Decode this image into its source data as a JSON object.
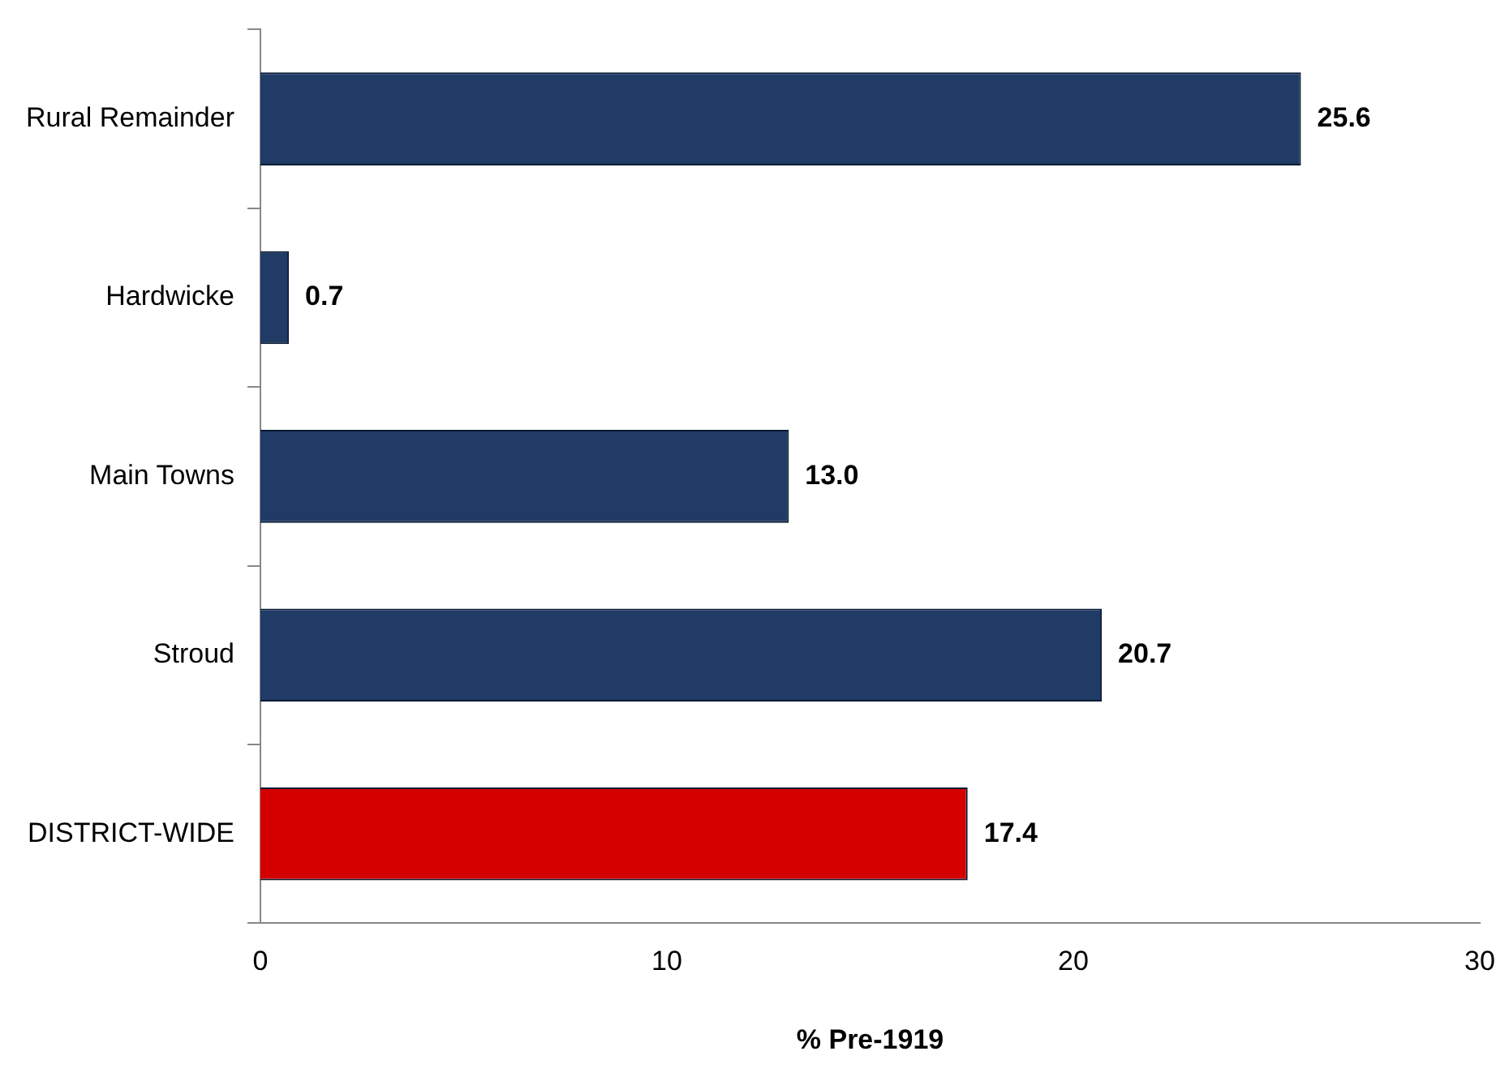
{
  "chart_data": {
    "type": "bar",
    "orientation": "horizontal",
    "xlabel": "% Pre-1919",
    "categories": [
      "Rural Remainder",
      "Hardwicke",
      "Main Towns",
      "Stroud",
      "DISTRICT-WIDE"
    ],
    "values": [
      25.6,
      0.7,
      13.0,
      20.7,
      17.4
    ],
    "colors": [
      "#1f3b66",
      "#1f3b66",
      "#1f3b66",
      "#1f3b66",
      "#d40000"
    ],
    "value_labels": [
      "25.6",
      "0.7",
      "13.0",
      "20.7",
      "17.4"
    ],
    "xlim": [
      0,
      30
    ],
    "xticks": [
      0,
      10,
      20,
      30
    ],
    "grid": false,
    "legend": false
  }
}
